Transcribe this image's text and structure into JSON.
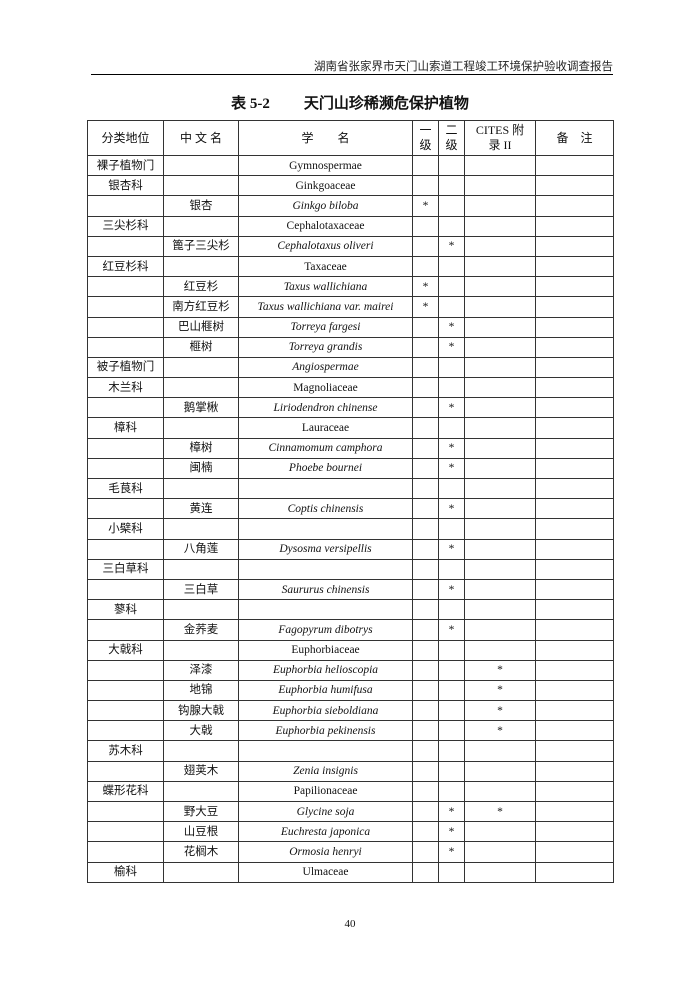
{
  "running_header": "湖南省张家界市天门山索道工程竣工环境保护验收调查报告",
  "title": {
    "number": "表 5-2",
    "text": "天门山珍稀濒危保护植物"
  },
  "table": {
    "headers": [
      "分类地位",
      "中 文 名",
      "学　　名",
      "一级",
      "二级",
      "CITES 附录 II",
      "备　注"
    ],
    "rows": [
      [
        "裸子植物门",
        "",
        "Gymnospermae",
        false,
        "",
        "",
        ""
      ],
      [
        "银杏科",
        "",
        "Ginkgoaceae",
        false,
        "",
        "",
        ""
      ],
      [
        "",
        "银杏",
        "Ginkgo biloba",
        true,
        "*",
        "",
        ""
      ],
      [
        "三尖杉科",
        "",
        "Cephalotaxaceae",
        false,
        "",
        "",
        ""
      ],
      [
        "",
        "篦子三尖杉",
        "Cephalotaxus oliveri",
        true,
        "",
        "*",
        ""
      ],
      [
        "红豆杉科",
        "",
        "Taxaceae",
        false,
        "",
        "",
        ""
      ],
      [
        "",
        "红豆杉",
        "Taxus wallichiana",
        true,
        "*",
        "",
        ""
      ],
      [
        "",
        "南方红豆杉",
        "Taxus wallichiana var. mairei",
        true,
        "*",
        "",
        ""
      ],
      [
        "",
        "巴山榧树",
        "Torreya fargesi",
        true,
        "",
        "*",
        ""
      ],
      [
        "",
        "榧树",
        "Torreya grandis",
        true,
        "",
        "*",
        ""
      ],
      [
        "被子植物门",
        "",
        "Angiospermae",
        true,
        "",
        "",
        ""
      ],
      [
        "木兰科",
        "",
        "Magnoliaceae",
        false,
        "",
        "",
        ""
      ],
      [
        "",
        "鹅掌楸",
        "Liriodendron chinense",
        true,
        "",
        "*",
        ""
      ],
      [
        "樟科",
        "",
        "Lauraceae",
        false,
        "",
        "",
        ""
      ],
      [
        "",
        "樟树",
        "Cinnamomum camphora",
        true,
        "",
        "*",
        ""
      ],
      [
        "",
        "闽楠",
        "Phoebe bournei",
        true,
        "",
        "*",
        ""
      ],
      [
        "毛茛科",
        "",
        "",
        false,
        "",
        "",
        ""
      ],
      [
        "",
        "黄连",
        "Coptis chinensis",
        true,
        "",
        "*",
        ""
      ],
      [
        "小檗科",
        "",
        "",
        false,
        "",
        "",
        ""
      ],
      [
        "",
        "八角莲",
        "Dysosma versipellis",
        true,
        "",
        "*",
        ""
      ],
      [
        "三白草科",
        "",
        "",
        false,
        "",
        "",
        ""
      ],
      [
        "",
        "三白草",
        "Saururus chinensis",
        true,
        "",
        "*",
        ""
      ],
      [
        "蓼科",
        "",
        "",
        false,
        "",
        "",
        ""
      ],
      [
        "",
        "金荞麦",
        "Fagopyrum dibotrys",
        true,
        "",
        "*",
        ""
      ],
      [
        "大戟科",
        "",
        "Euphorbiaceae",
        false,
        "",
        "",
        ""
      ],
      [
        "",
        "泽漆",
        "Euphorbia helioscopia",
        true,
        "",
        "",
        "*"
      ],
      [
        "",
        "地锦",
        "Euphorbia humifusa",
        true,
        "",
        "",
        "*"
      ],
      [
        "",
        "钩腺大戟",
        "Euphorbia sieboldiana",
        true,
        "",
        "",
        "*"
      ],
      [
        "",
        "大戟",
        "Euphorbia pekinensis",
        true,
        "",
        "",
        "*"
      ],
      [
        "苏木科",
        "",
        "",
        false,
        "",
        "",
        ""
      ],
      [
        "",
        "翅荚木",
        "Zenia insignis",
        true,
        "",
        "",
        ""
      ],
      [
        "蝶形花科",
        "",
        "Papilionaceae",
        false,
        "",
        "",
        ""
      ],
      [
        "",
        "野大豆",
        "Glycine soja",
        true,
        "",
        "*",
        "*"
      ],
      [
        "",
        "山豆根",
        "Euchresta japonica",
        true,
        "",
        "*",
        ""
      ],
      [
        "",
        "花榈木",
        "Ormosia henryi",
        true,
        "",
        "*",
        ""
      ],
      [
        "榆科",
        "",
        "Ulmaceae",
        false,
        "",
        "",
        ""
      ]
    ]
  },
  "page_number": "40"
}
